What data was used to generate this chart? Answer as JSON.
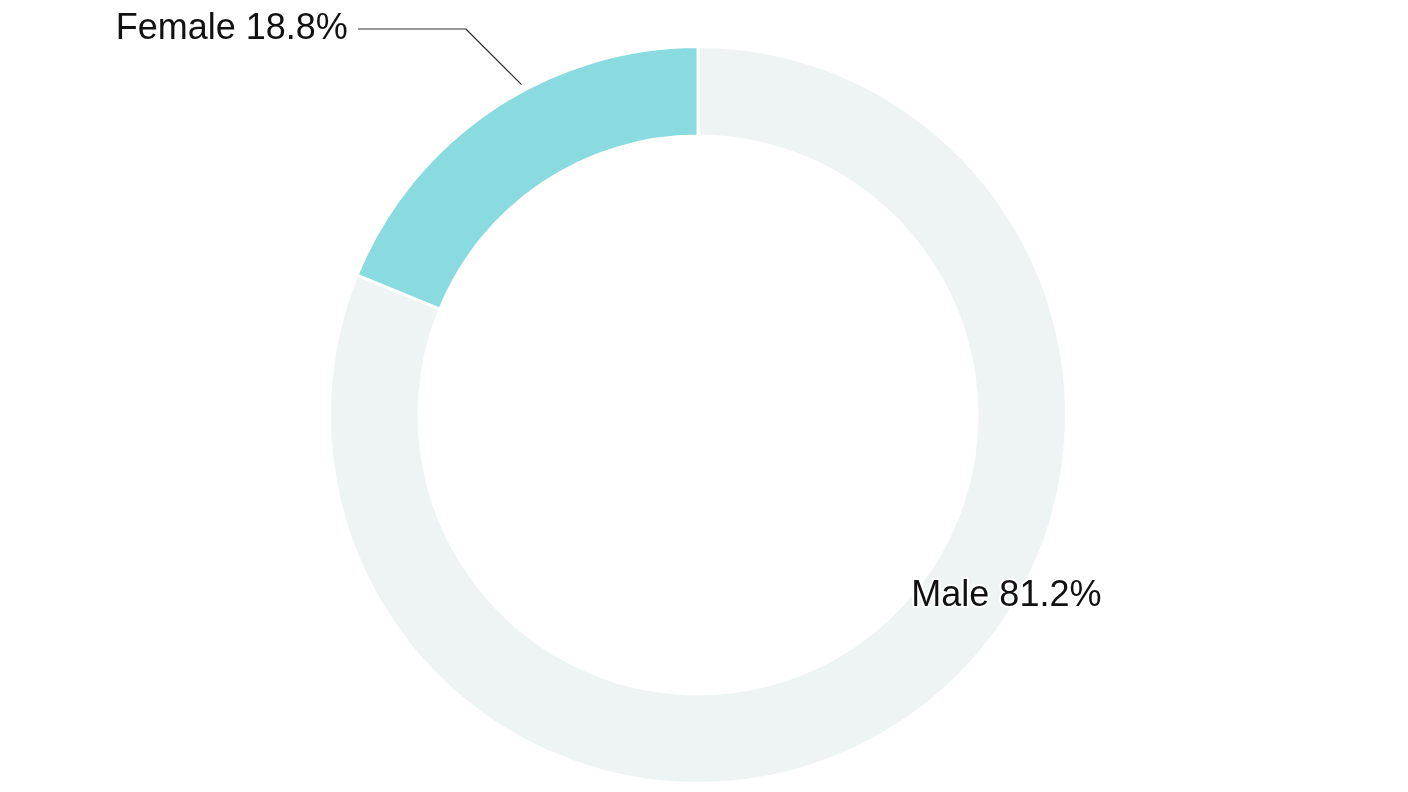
{
  "chart_data": {
    "type": "donut",
    "categories": [
      "Male",
      "Female"
    ],
    "values": [
      81.2,
      18.8
    ],
    "colors": [
      "#eef4f4",
      "#8adbe0"
    ],
    "value_labels": [
      "81.2%",
      "18.8%"
    ],
    "legend": false
  }
}
